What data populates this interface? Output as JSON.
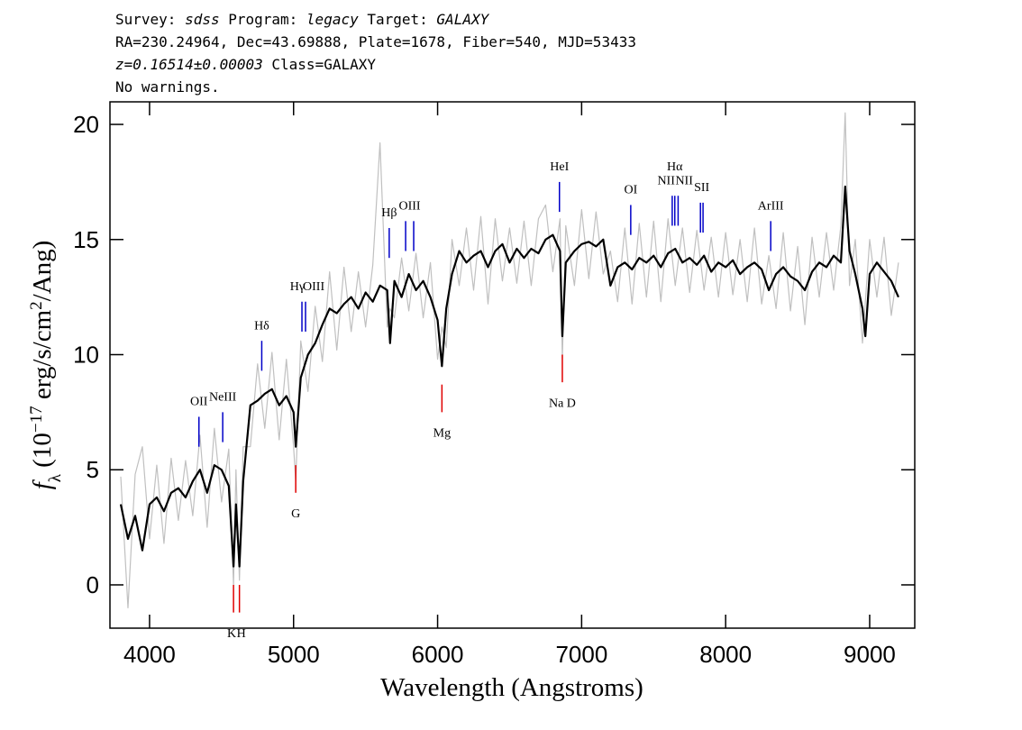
{
  "header": {
    "lines": [
      [
        {
          "text": "Survey: "
        },
        {
          "text": "sdss",
          "style": "italic"
        },
        {
          "text": " Program: "
        },
        {
          "text": "legacy",
          "style": "italic"
        },
        {
          "text": " Target: "
        },
        {
          "text": "GALAXY",
          "style": "italic"
        }
      ],
      [
        {
          "text": "RA=230.24964, Dec=43.69888, Plate=1678, Fiber=540, MJD=53433"
        }
      ],
      [
        {
          "text": "z=0.16514±0.00003",
          "style": "italic"
        },
        {
          "text": " Class=GALAXY"
        }
      ],
      [
        {
          "text": "No warnings."
        }
      ]
    ]
  },
  "chart_data": {
    "type": "line",
    "xlabel": "Wavelength (Angstroms)",
    "ylabel": [
      {
        "text": "f",
        "style": "italic"
      },
      {
        "text": "λ",
        "style": "sub"
      },
      {
        "text": " (10"
      },
      {
        "text": "−17",
        "style": "sup"
      },
      {
        "text": " erg/s/cm"
      },
      {
        "text": "2",
        "style": "sup"
      },
      {
        "text": "/Ang)"
      }
    ],
    "xlim": [
      3725,
      9313
    ],
    "ylim": [
      -1.88,
      20.98
    ],
    "xticks": [
      4000,
      5000,
      6000,
      7000,
      8000,
      9000
    ],
    "yticks": [
      0,
      5,
      10,
      15,
      20
    ],
    "x": [
      3800,
      3850,
      3900,
      3950,
      4000,
      4050,
      4100,
      4150,
      4200,
      4250,
      4300,
      4350,
      4400,
      4450,
      4500,
      4550,
      4583,
      4600,
      4624,
      4650,
      4700,
      4750,
      4800,
      4850,
      4900,
      4950,
      5000,
      5015,
      5050,
      5100,
      5150,
      5200,
      5250,
      5300,
      5350,
      5400,
      5450,
      5500,
      5550,
      5600,
      5650,
      5670,
      5700,
      5750,
      5800,
      5850,
      5900,
      5950,
      6000,
      6030,
      6060,
      6100,
      6150,
      6200,
      6250,
      6300,
      6350,
      6400,
      6450,
      6500,
      6550,
      6600,
      6650,
      6700,
      6750,
      6800,
      6850,
      6866,
      6890,
      6950,
      7000,
      7050,
      7100,
      7150,
      7200,
      7250,
      7300,
      7350,
      7400,
      7450,
      7500,
      7550,
      7600,
      7650,
      7700,
      7750,
      7800,
      7850,
      7900,
      7950,
      8000,
      8050,
      8100,
      8150,
      8200,
      8250,
      8300,
      8350,
      8400,
      8450,
      8500,
      8550,
      8600,
      8650,
      8700,
      8750,
      8800,
      8830,
      8860,
      8900,
      8950,
      8970,
      9000,
      9050,
      9100,
      9150,
      9200
    ],
    "series": [
      {
        "color": "#c0c0c0",
        "values": [
          4.7,
          -1.0,
          4.8,
          6.0,
          2.0,
          5.2,
          1.8,
          5.5,
          2.8,
          5.4,
          3.0,
          6.5,
          2.5,
          6.8,
          3.6,
          5.9,
          0.0,
          5.0,
          0.2,
          6.0,
          6.0,
          9.6,
          6.8,
          10.1,
          6.3,
          9.8,
          6.0,
          4.5,
          10.6,
          8.4,
          12.1,
          9.7,
          13.6,
          10.2,
          13.8,
          11.0,
          13.6,
          11.2,
          13.9,
          19.2,
          11.2,
          12.0,
          11.6,
          14.2,
          11.9,
          14.4,
          11.6,
          14.0,
          9.8,
          11.2,
          10.3,
          15.0,
          13.0,
          15.5,
          12.8,
          16.0,
          12.2,
          15.9,
          13.2,
          15.5,
          13.1,
          15.8,
          13.0,
          15.9,
          16.5,
          13.6,
          15.9,
          9.8,
          15.6,
          13.0,
          16.3,
          13.3,
          16.2,
          13.5,
          14.5,
          12.3,
          15.5,
          12.2,
          15.7,
          12.5,
          15.8,
          12.3,
          15.9,
          13.0,
          15.5,
          12.7,
          15.4,
          12.8,
          15.1,
          12.5,
          15.3,
          12.6,
          15.0,
          12.3,
          15.5,
          12.2,
          14.3,
          12.0,
          15.3,
          11.9,
          14.7,
          11.3,
          15.1,
          12.5,
          15.3,
          12.8,
          15.6,
          20.5,
          13.0,
          15.0,
          10.5,
          12.3,
          15.0,
          12.5,
          15.1,
          11.7,
          14.0
        ]
      },
      {
        "color": "#000000",
        "values": [
          3.5,
          2.0,
          3.0,
          1.5,
          3.5,
          3.8,
          3.2,
          4.0,
          4.2,
          3.8,
          4.5,
          5.0,
          4.0,
          5.2,
          5.0,
          4.3,
          0.8,
          3.5,
          0.8,
          4.5,
          7.8,
          8.0,
          8.3,
          8.5,
          7.8,
          8.2,
          7.5,
          6.0,
          9.0,
          10.0,
          10.5,
          11.3,
          12.0,
          11.8,
          12.2,
          12.5,
          12.0,
          12.7,
          12.3,
          13.0,
          12.8,
          10.5,
          13.2,
          12.5,
          13.5,
          12.8,
          13.2,
          12.5,
          11.5,
          9.5,
          12.0,
          13.5,
          14.5,
          14.0,
          14.3,
          14.5,
          13.8,
          14.5,
          14.8,
          14.0,
          14.6,
          14.2,
          14.6,
          14.4,
          15.0,
          15.2,
          14.5,
          10.8,
          14.0,
          14.5,
          14.8,
          14.9,
          14.7,
          15.0,
          13.0,
          13.8,
          14.0,
          13.7,
          14.2,
          14.0,
          14.3,
          13.8,
          14.4,
          14.6,
          14.0,
          14.2,
          13.9,
          14.3,
          13.6,
          14.0,
          13.8,
          14.1,
          13.5,
          13.8,
          14.0,
          13.7,
          12.8,
          13.5,
          13.8,
          13.4,
          13.2,
          12.8,
          13.6,
          14.0,
          13.8,
          14.3,
          14.0,
          17.3,
          14.5,
          13.5,
          12.0,
          10.8,
          13.5,
          14.0,
          13.6,
          13.2,
          12.5
        ]
      }
    ],
    "lines": [
      {
        "label": "OII",
        "wavelengths": [
          4343
        ],
        "kind": "emission",
        "color": "#0000c8"
      },
      {
        "label": "NeIII",
        "wavelengths": [
          4508
        ],
        "kind": "emission",
        "color": "#0000c8"
      },
      {
        "label": "Hδ",
        "wavelengths": [
          4779
        ],
        "kind": "emission",
        "color": "#0000c8"
      },
      {
        "label": "Hγ",
        "wavelengths": [
          5058
        ],
        "kind": "emission",
        "color": "#0000c8"
      },
      {
        "label": "OIII",
        "wavelengths": [
          5083
        ],
        "kind": "emission",
        "color": "#0000c8"
      },
      {
        "label": "Hβ",
        "wavelengths": [
          5664
        ],
        "kind": "emission",
        "color": "#0000c8"
      },
      {
        "label": "OIII",
        "wavelengths": [
          5778,
          5834
        ],
        "kind": "emission",
        "color": "#0000c8"
      },
      {
        "label": "HeI",
        "wavelengths": [
          6846
        ],
        "kind": "emission",
        "color": "#0000c8"
      },
      {
        "label": "OI",
        "wavelengths": [
          7341
        ],
        "kind": "emission",
        "color": "#0000c8"
      },
      {
        "label": "NII",
        "wavelengths": [
          7629
        ],
        "kind": "emission",
        "color": "#0000c8"
      },
      {
        "label": "Hα",
        "wavelengths": [
          7647
        ],
        "kind": "emission",
        "color": "#0000c8"
      },
      {
        "label": "NII",
        "wavelengths": [
          7670
        ],
        "kind": "emission",
        "color": "#0000c8"
      },
      {
        "label": "SII",
        "wavelengths": [
          7825,
          7843
        ],
        "kind": "emission",
        "color": "#0000c8"
      },
      {
        "label": "ArIII",
        "wavelengths": [
          8313
        ],
        "kind": "emission",
        "color": "#0000c8"
      },
      {
        "label": "K",
        "wavelengths": [
          4583
        ],
        "kind": "absorption",
        "color": "#e00000"
      },
      {
        "label": "H",
        "wavelengths": [
          4624
        ],
        "kind": "absorption",
        "color": "#e00000"
      },
      {
        "label": "G",
        "wavelengths": [
          5015
        ],
        "kind": "absorption",
        "color": "#e00000"
      },
      {
        "label": "Mg",
        "wavelengths": [
          6030
        ],
        "kind": "absorption",
        "color": "#e00000"
      },
      {
        "label": "Na D",
        "wavelengths": [
          6866
        ],
        "kind": "absorption",
        "color": "#e00000"
      }
    ]
  }
}
